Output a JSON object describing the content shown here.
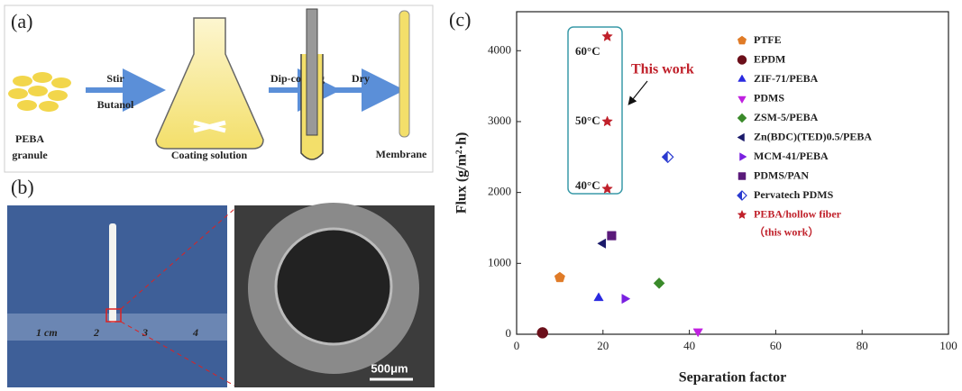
{
  "panels": {
    "a": {
      "label": "(a)",
      "granule": "PEBA\ngranule",
      "stir": "Stir",
      "butanol": "Butanol",
      "solution": "Coating solution",
      "dip": "Dip-coating",
      "dry": "Dry",
      "membrane": "Membrane"
    },
    "b": {
      "label": "(b)",
      "ruler": [
        "1 cm",
        "2",
        "3",
        "4"
      ],
      "scale_bar": "500μm"
    }
  },
  "chart_data": {
    "type": "scatter",
    "panel_label": "(c)",
    "x_label": "Separation factor",
    "y_label": "Flux (g/m²·h)",
    "xlim": [
      0,
      100
    ],
    "xticks": [
      0,
      20,
      40,
      60,
      80,
      100
    ],
    "ylim": [
      0,
      4550
    ],
    "yticks": [
      0,
      1000,
      2000,
      3000,
      4000
    ],
    "series": [
      {
        "name": "PTFE",
        "color": "#e07b27",
        "marker": "pentagon",
        "x": [
          10
        ],
        "values": [
          800
        ]
      },
      {
        "name": "EPDM",
        "color": "#6b0f1a",
        "marker": "circle",
        "x": [
          6
        ],
        "values": [
          20
        ]
      },
      {
        "name": "ZIF-71/PEBA",
        "color": "#2a2ae0",
        "marker": "triangle-up",
        "x": [
          19
        ],
        "values": [
          510
        ]
      },
      {
        "name": "PDMS",
        "color": "#c020e0",
        "marker": "triangle-down",
        "x": [
          42
        ],
        "values": [
          40
        ]
      },
      {
        "name": "ZSM-5/PEBA",
        "color": "#3a8a2a",
        "marker": "diamond",
        "x": [
          33
        ],
        "values": [
          720
        ]
      },
      {
        "name": "Zn(BDC)(TED)0.5/PEBA",
        "color": "#1a1a6a",
        "marker": "triangle-left",
        "x": [
          20
        ],
        "values": [
          1280
        ]
      },
      {
        "name": "MCM-41/PEBA",
        "color": "#7a20e0",
        "marker": "triangle-right",
        "x": [
          25
        ],
        "values": [
          500
        ]
      },
      {
        "name": "PDMS/PAN",
        "color": "#5a1a7a",
        "marker": "square",
        "x": [
          22
        ],
        "values": [
          1390
        ]
      },
      {
        "name": "Pervatech PDMS",
        "color": "#2a3ad0",
        "marker": "half-diamond",
        "x": [
          35
        ],
        "values": [
          2500
        ]
      },
      {
        "name": "PEBA/hollow fiber",
        "note": "（this work）",
        "color": "#c0202a",
        "marker": "star",
        "x": [
          21,
          21,
          21
        ],
        "values": [
          2050,
          3000,
          4200
        ]
      }
    ],
    "annotations": {
      "t60": "60°C",
      "t50": "50°C",
      "t40": "40°C",
      "this_work": "This work"
    }
  }
}
